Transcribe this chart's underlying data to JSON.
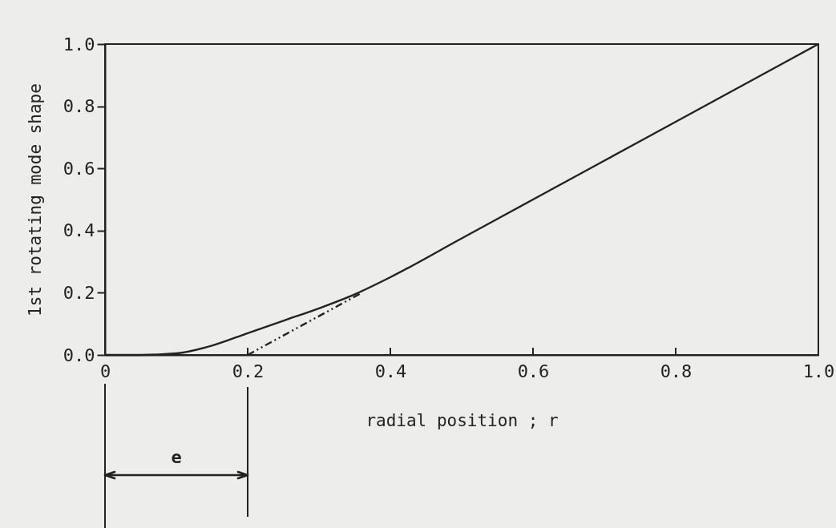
{
  "chart_data": {
    "type": "line",
    "xlabel": "radial position ; r",
    "ylabel": "1st rotating mode shape",
    "xlim": [
      0,
      1.0
    ],
    "ylim": [
      0,
      1.0
    ],
    "xticks": [
      0,
      0.2,
      0.4,
      0.6,
      0.8,
      {
        "value": 1.0,
        "label": "1.0"
      }
    ],
    "yticks": [
      {
        "value": 0,
        "label": "0.0"
      },
      0.2,
      0.4,
      0.6,
      0.8,
      {
        "value": 1.0,
        "label": "1.0"
      }
    ],
    "grid": false,
    "series": [
      {
        "color": "#222222",
        "line_style": "solid",
        "x": [
          0,
          0.05,
          0.1,
          0.15,
          0.2,
          0.25,
          0.3,
          0.35,
          0.4,
          0.5,
          0.6,
          0.7,
          0.8,
          0.9,
          1.0
        ],
        "values": [
          0,
          0,
          0.005,
          0.03,
          0.07,
          0.11,
          0.15,
          0.195,
          0.25,
          0.375,
          0.5,
          0.625,
          0.75,
          0.875,
          1.0
        ]
      },
      {
        "color": "#222222",
        "line_style": "dashed",
        "x": [
          0.2,
          0.36
        ],
        "values": [
          0,
          0.2
        ]
      }
    ],
    "annotations": [
      "e"
    ]
  }
}
